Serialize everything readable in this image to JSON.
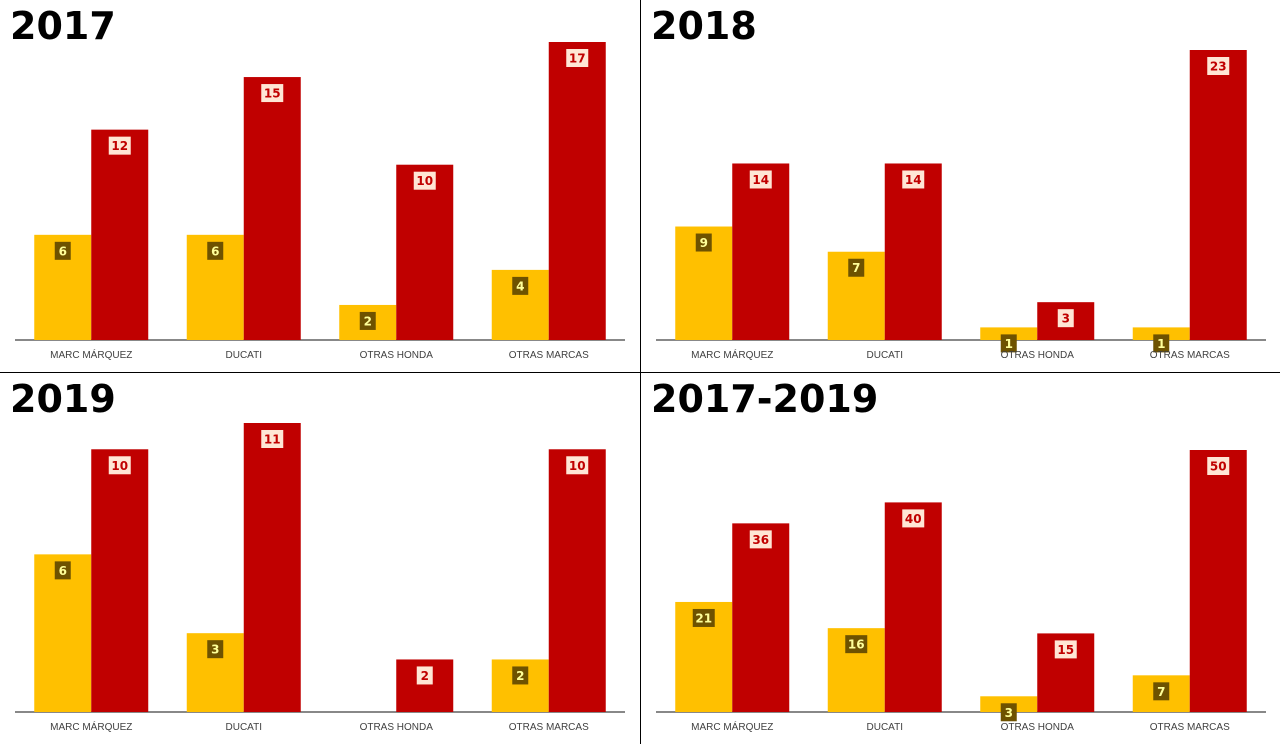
{
  "colors": {
    "yellow_bar": "#ffc000",
    "red_bar": "#c00000",
    "yellow_label_bg": "#6e5200",
    "yellow_label_text": "#ffff99",
    "red_label_bg": "#ffe6d5",
    "red_label_text": "#c00000",
    "axis": "#404040"
  },
  "chart_data": [
    {
      "type": "bar",
      "title": "2017",
      "categories": [
        "MARC MÁRQUEZ",
        "DUCATI",
        "OTRAS HONDA",
        "OTRAS MARCAS"
      ],
      "series": [
        {
          "color": "#ffc000",
          "values": [
            6,
            6,
            2,
            4
          ]
        },
        {
          "color": "#c00000",
          "values": [
            12,
            15,
            10,
            17
          ]
        }
      ],
      "ylim": [
        0,
        17
      ]
    },
    {
      "type": "bar",
      "title": "2018",
      "categories": [
        "MARC MÁRQUEZ",
        "DUCATI",
        "OTRAS HONDA",
        "OTRAS MARCAS"
      ],
      "series": [
        {
          "color": "#ffc000",
          "values": [
            9,
            7,
            1,
            1
          ]
        },
        {
          "color": "#c00000",
          "values": [
            14,
            14,
            3,
            23
          ]
        }
      ],
      "ylim": [
        0,
        23
      ]
    },
    {
      "type": "bar",
      "title": "2019",
      "categories": [
        "MARC MÁRQUEZ",
        "DUCATI",
        "OTRAS HONDA",
        "OTRAS MARCAS"
      ],
      "series": [
        {
          "color": "#ffc000",
          "values": [
            6,
            3,
            0,
            2
          ]
        },
        {
          "color": "#c00000",
          "values": [
            10,
            11,
            2,
            10
          ]
        }
      ],
      "ylim": [
        0,
        11
      ]
    },
    {
      "type": "bar",
      "title": "2017-2019",
      "categories": [
        "MARC MÁRQUEZ",
        "DUCATI",
        "OTRAS HONDA",
        "OTRAS MARCAS"
      ],
      "series": [
        {
          "color": "#ffc000",
          "values": [
            21,
            16,
            3,
            7
          ]
        },
        {
          "color": "#c00000",
          "values": [
            36,
            40,
            15,
            50
          ]
        }
      ],
      "ylim": [
        0,
        50
      ]
    }
  ]
}
